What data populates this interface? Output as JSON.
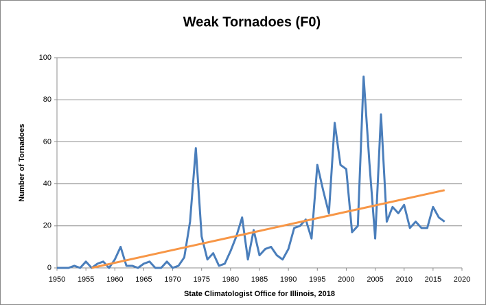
{
  "chart_data": {
    "type": "line",
    "title": "Weak Tornadoes (F0)",
    "x_label": "State Climatologist Office for Illinois, 2018",
    "y_label": "Number of Tornadoes",
    "xlim": [
      1950,
      2020
    ],
    "xticks": [
      1950,
      1955,
      1960,
      1965,
      1970,
      1975,
      1980,
      1985,
      1990,
      1995,
      2000,
      2005,
      2010,
      2015,
      2020
    ],
    "ylim": [
      0,
      100
    ],
    "yticks": [
      0,
      20,
      40,
      60,
      80,
      100
    ],
    "grid": true,
    "series": [
      {
        "color": "#4a7ebb",
        "x": [
          1950,
          1951,
          1952,
          1953,
          1954,
          1955,
          1956,
          1957,
          1958,
          1959,
          1960,
          1961,
          1962,
          1963,
          1964,
          1965,
          1966,
          1967,
          1968,
          1969,
          1970,
          1971,
          1972,
          1973,
          1974,
          1975,
          1976,
          1977,
          1978,
          1979,
          1980,
          1981,
          1982,
          1983,
          1984,
          1985,
          1986,
          1987,
          1988,
          1989,
          1990,
          1991,
          1992,
          1993,
          1994,
          1995,
          1996,
          1997,
          1998,
          1999,
          2000,
          2001,
          2002,
          2003,
          2004,
          2005,
          2006,
          2007,
          2008,
          2009,
          2010,
          2011,
          2012,
          2013,
          2014,
          2015,
          2016,
          2017
        ],
        "values": [
          0,
          0,
          0,
          1,
          0,
          3,
          0,
          2,
          3,
          0,
          4,
          10,
          1,
          1,
          0,
          2,
          3,
          0,
          0,
          3,
          0,
          1,
          5,
          22,
          57,
          15,
          4,
          7,
          1,
          2,
          8,
          15,
          24,
          4,
          18,
          6,
          9,
          10,
          6,
          4,
          9,
          19,
          20,
          23,
          14,
          49,
          37,
          26,
          69,
          49,
          47,
          17,
          20,
          91,
          50,
          14,
          73,
          22,
          29,
          26,
          30,
          19,
          22,
          19,
          19,
          29,
          24,
          22
        ]
      },
      {
        "color": "#f79646",
        "x": [
          1956,
          2017
        ],
        "values": [
          0,
          37
        ]
      }
    ]
  }
}
